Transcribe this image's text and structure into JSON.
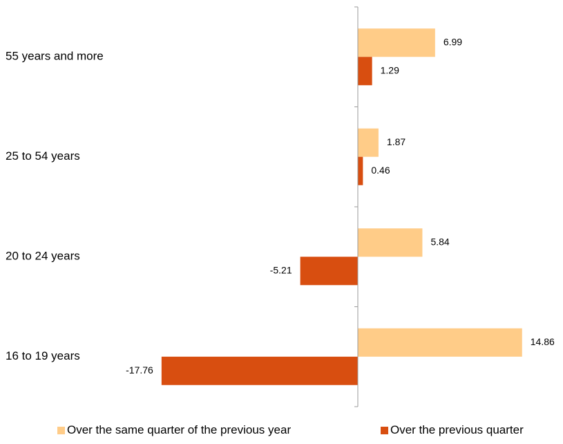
{
  "chart_data": {
    "type": "bar",
    "orientation": "horizontal",
    "categories": [
      "55 years and more",
      "25 to 54 years",
      "20 to 24 years",
      "16 to 19 years"
    ],
    "series": [
      {
        "name": "Over the same quarter of  the previous year",
        "values": [
          6.99,
          1.87,
          5.84,
          14.86
        ],
        "labels": [
          "6.99",
          "1.87",
          "5.84",
          "14.86"
        ],
        "color": "#FFCC88"
      },
      {
        "name": "Over the previous quarter",
        "values": [
          1.29,
          0.46,
          -5.21,
          -17.76
        ],
        "labels": [
          "1.29",
          "0.46",
          "-5.21",
          "-17.76"
        ],
        "color": "#D84E10"
      }
    ],
    "xlim": [
      -18,
      18
    ],
    "grid": false,
    "legend": "bottom"
  }
}
